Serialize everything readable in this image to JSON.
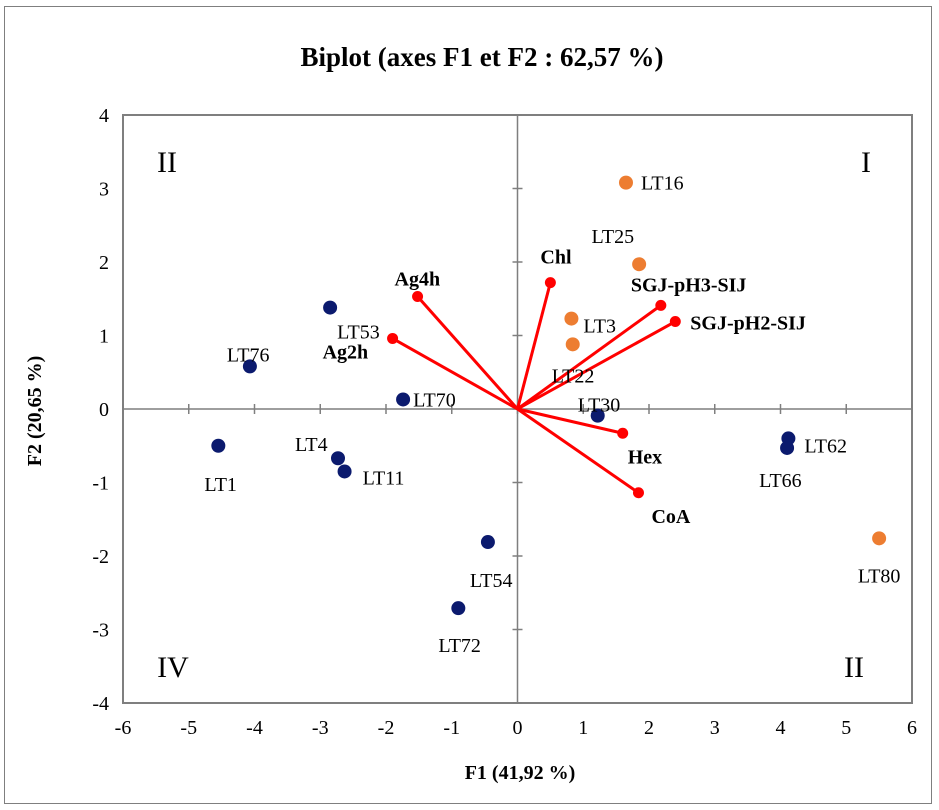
{
  "chart_data": {
    "type": "scatter",
    "title": "Biplot (axes F1 et F2 : 62,57 %)",
    "xlabel": "F1 (41,92 %)",
    "ylabel": "F2 (20,65 %)",
    "xlim": [
      -6,
      6
    ],
    "ylim": [
      -4,
      4
    ],
    "xticks": [
      -6,
      -5,
      -4,
      -3,
      -2,
      -1,
      0,
      1,
      2,
      3,
      4,
      5,
      6
    ],
    "yticks": [
      -4,
      -3,
      -2,
      -1,
      0,
      1,
      2,
      3,
      4
    ],
    "grid": false,
    "colors": {
      "group_navy": "#0b1a6e",
      "group_orange": "#ed7d31",
      "variable": "#ff0000",
      "axis": "#7f7f7f"
    },
    "observations": [
      {
        "label": "LT16",
        "x": 1.65,
        "y": 3.08,
        "group": "orange"
      },
      {
        "label": "LT25",
        "x": 1.85,
        "y": 1.97,
        "group": "orange"
      },
      {
        "label": "LT3",
        "x": 0.82,
        "y": 1.23,
        "group": "orange"
      },
      {
        "label": "LT22",
        "x": 0.84,
        "y": 0.88,
        "group": "orange"
      },
      {
        "label": "LT80",
        "x": 5.5,
        "y": -1.76,
        "group": "orange"
      },
      {
        "label": "LT53",
        "x": -2.85,
        "y": 1.38,
        "group": "navy"
      },
      {
        "label": "LT76",
        "x": -4.07,
        "y": 0.58,
        "group": "navy"
      },
      {
        "label": "LT70",
        "x": -1.74,
        "y": 0.13,
        "group": "navy"
      },
      {
        "label": "LT30",
        "x": 1.22,
        "y": -0.09,
        "group": "navy"
      },
      {
        "label": "LT1",
        "x": -4.55,
        "y": -0.5,
        "group": "navy"
      },
      {
        "label": "LT4",
        "x": -2.73,
        "y": -0.67,
        "group": "navy"
      },
      {
        "label": "LT11",
        "x": -2.63,
        "y": -0.85,
        "group": "navy"
      },
      {
        "label": "LT62",
        "x": 4.12,
        "y": -0.4,
        "group": "navy"
      },
      {
        "label": "LT66",
        "x": 4.1,
        "y": -0.53,
        "group": "navy"
      },
      {
        "label": "LT54",
        "x": -0.45,
        "y": -1.81,
        "group": "navy"
      },
      {
        "label": "LT72",
        "x": -0.9,
        "y": -2.71,
        "group": "navy"
      }
    ],
    "variables": [
      {
        "label": "Chl",
        "x": 0.5,
        "y": 1.72
      },
      {
        "label": "SGJ-pH3-SIJ",
        "x": 2.18,
        "y": 1.41
      },
      {
        "label": "SGJ-pH2-SIJ",
        "x": 2.4,
        "y": 1.19
      },
      {
        "label": "Ag4h",
        "x": -1.52,
        "y": 1.53
      },
      {
        "label": "Ag2h",
        "x": -1.9,
        "y": 0.96
      },
      {
        "label": "Hex",
        "x": 1.6,
        "y": -0.33
      },
      {
        "label": "CoA",
        "x": 1.84,
        "y": -1.14
      }
    ],
    "quadrant_labels": [
      {
        "label": "I",
        "corner": "top-right"
      },
      {
        "label": "II",
        "corner": "top-left"
      },
      {
        "label": "II",
        "corner": "bottom-right"
      },
      {
        "label": "IV",
        "corner": "bottom-left"
      }
    ]
  }
}
